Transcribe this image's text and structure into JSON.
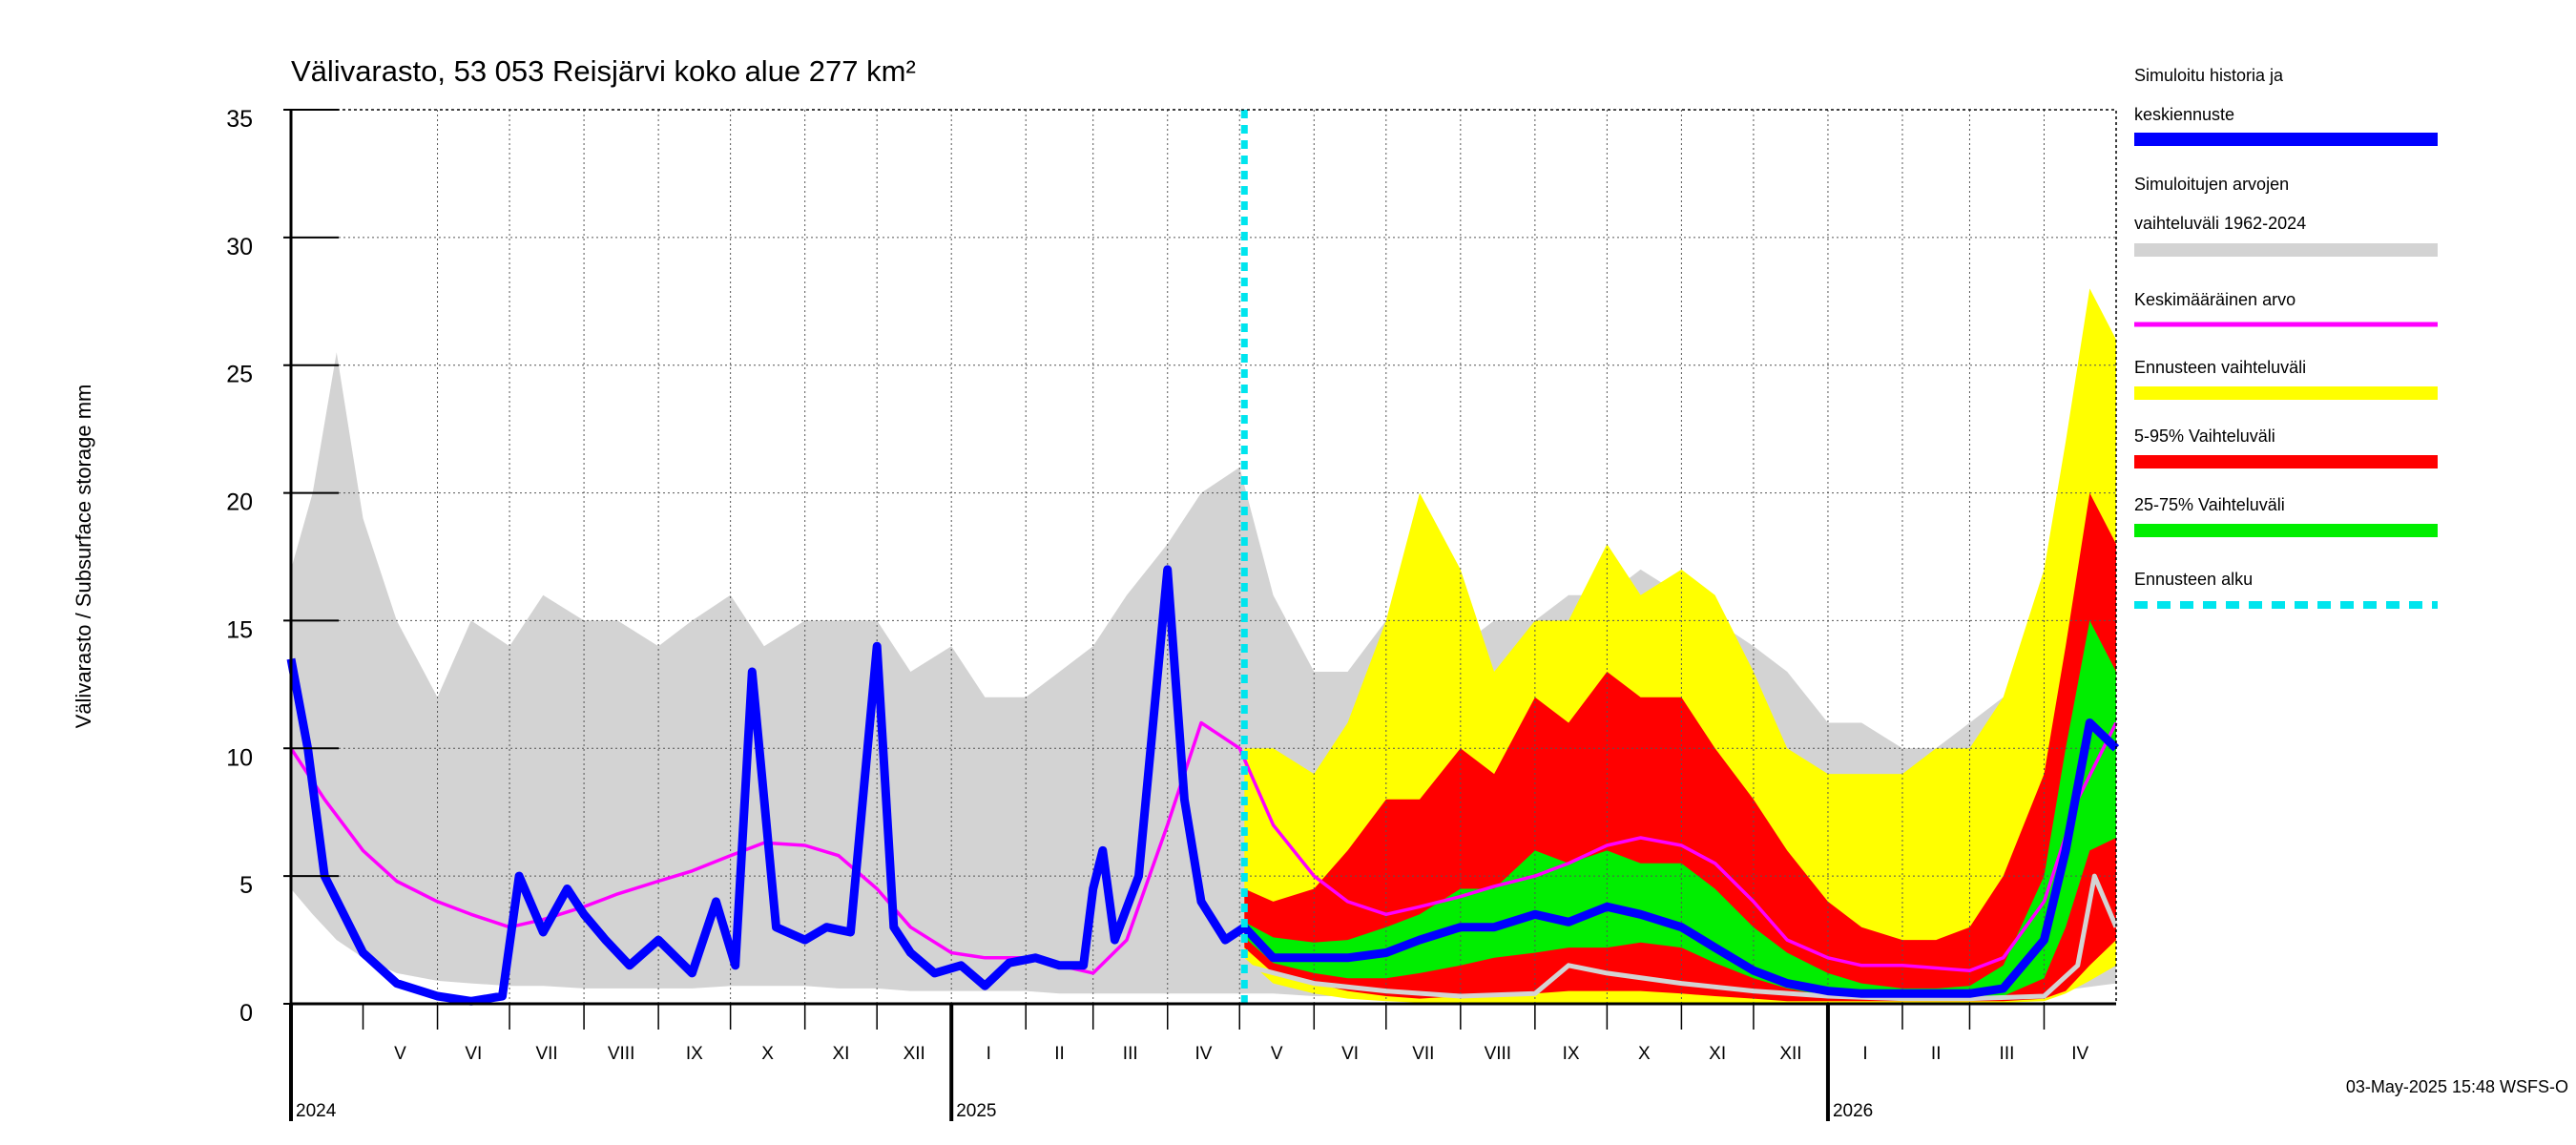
{
  "chart_data": {
    "type": "area",
    "title": "Välivarasto, 53 053 Reisjärvi koko alue 277 km²",
    "ylabel": "Välivarasto / Subsurface storage  mm",
    "ylim": [
      0,
      35
    ],
    "yticks": [
      "0",
      "5",
      "10",
      "15",
      "20",
      "25",
      "30",
      "35"
    ],
    "xlim": [
      "2024-04-01",
      "2026-05-01"
    ],
    "forecast_start": "2025-05-03",
    "grid": true,
    "legend_position": "right",
    "months": [
      {
        "label": "V",
        "start": "2024-05-01",
        "end": "2024-06-01"
      },
      {
        "label": "VI",
        "start": "2024-06-01",
        "end": "2024-07-01"
      },
      {
        "label": "VII",
        "start": "2024-07-01",
        "end": "2024-08-01"
      },
      {
        "label": "VIII",
        "start": "2024-08-01",
        "end": "2024-09-01"
      },
      {
        "label": "IX",
        "start": "2024-09-01",
        "end": "2024-10-01"
      },
      {
        "label": "X",
        "start": "2024-10-01",
        "end": "2024-11-01"
      },
      {
        "label": "XI",
        "start": "2024-11-01",
        "end": "2024-12-01"
      },
      {
        "label": "XII",
        "start": "2024-12-01",
        "end": "2025-01-01"
      },
      {
        "label": "I",
        "start": "2025-01-01",
        "end": "2025-02-01"
      },
      {
        "label": "II",
        "start": "2025-02-01",
        "end": "2025-03-01"
      },
      {
        "label": "III",
        "start": "2025-03-01",
        "end": "2025-04-01"
      },
      {
        "label": "IV",
        "start": "2025-04-01",
        "end": "2025-05-01"
      },
      {
        "label": "V",
        "start": "2025-05-01",
        "end": "2025-06-01"
      },
      {
        "label": "VI",
        "start": "2025-06-01",
        "end": "2025-07-01"
      },
      {
        "label": "VII",
        "start": "2025-07-01",
        "end": "2025-08-01"
      },
      {
        "label": "VIII",
        "start": "2025-08-01",
        "end": "2025-09-01"
      },
      {
        "label": "IX",
        "start": "2025-09-01",
        "end": "2025-10-01"
      },
      {
        "label": "X",
        "start": "2025-10-01",
        "end": "2025-11-01"
      },
      {
        "label": "XI",
        "start": "2025-11-01",
        "end": "2025-12-01"
      },
      {
        "label": "XII",
        "start": "2025-12-01",
        "end": "2026-01-01"
      },
      {
        "label": "I",
        "start": "2026-01-01",
        "end": "2026-02-01"
      },
      {
        "label": "II",
        "start": "2026-02-01",
        "end": "2026-03-01"
      },
      {
        "label": "III",
        "start": "2026-03-01",
        "end": "2026-04-01"
      },
      {
        "label": "IV",
        "start": "2026-04-01",
        "end": "2026-05-01"
      }
    ],
    "years": [
      {
        "label": "2024",
        "start": "2024-04-01"
      },
      {
        "label": "2025",
        "start": "2025-01-01"
      },
      {
        "label": "2026",
        "start": "2026-01-01"
      }
    ],
    "legend": [
      {
        "key": "history",
        "lines": [
          "Simuloitu historia ja",
          "keskiennuste"
        ],
        "color": "#0000ff"
      },
      {
        "key": "range",
        "lines": [
          "Simuloitujen arvojen",
          "vaihteluväli 1962-2024"
        ],
        "color": "#d3d3d3"
      },
      {
        "key": "mean",
        "lines": [
          "Keskimääräinen arvo"
        ],
        "color": "#ff00ff"
      },
      {
        "key": "fc_range",
        "lines": [
          "Ennusteen vaihteluväli"
        ],
        "color": "#ffff00"
      },
      {
        "key": "p5_95",
        "lines": [
          "5-95% Vaihteluväli"
        ],
        "color": "#ff0000"
      },
      {
        "key": "p25_75",
        "lines": [
          "25-75% Vaihteluväli"
        ],
        "color": "#00ee00"
      },
      {
        "key": "fc_start",
        "lines": [
          "Ennusteen alku"
        ],
        "color": "#00e5ee"
      }
    ],
    "series": {
      "hist_range": {
        "x": [
          "2024-04-01",
          "2024-04-10",
          "2024-04-20",
          "2024-05-01",
          "2024-05-15",
          "2024-06-01",
          "2024-06-15",
          "2024-07-01",
          "2024-07-15",
          "2024-08-01",
          "2024-08-15",
          "2024-09-01",
          "2024-09-15",
          "2024-10-01",
          "2024-10-15",
          "2024-11-01",
          "2024-11-15",
          "2024-12-01",
          "2024-12-15",
          "2025-01-01",
          "2025-01-15",
          "2025-02-01",
          "2025-02-15",
          "2025-03-01",
          "2025-03-15",
          "2025-04-01",
          "2025-04-15",
          "2025-05-01",
          "2025-05-15",
          "2025-06-01",
          "2025-06-15",
          "2025-07-01",
          "2025-07-15",
          "2025-08-01",
          "2025-08-15",
          "2025-09-01",
          "2025-09-15",
          "2025-10-01",
          "2025-10-15",
          "2025-11-01",
          "2025-11-15",
          "2025-12-01",
          "2025-12-15",
          "2026-01-01",
          "2026-01-15",
          "2026-02-01",
          "2026-02-15",
          "2026-03-01",
          "2026-03-15",
          "2026-04-01",
          "2026-04-15",
          "2026-05-01"
        ],
        "low": [
          4.5,
          3.5,
          2.5,
          1.8,
          1.2,
          0.9,
          0.8,
          0.7,
          0.7,
          0.6,
          0.6,
          0.6,
          0.6,
          0.7,
          0.7,
          0.7,
          0.6,
          0.6,
          0.5,
          0.5,
          0.5,
          0.5,
          0.4,
          0.4,
          0.4,
          0.4,
          0.4,
          0.4,
          0.4,
          0.3,
          0.3,
          0.3,
          0.3,
          0.3,
          0.3,
          0.3,
          0.3,
          0.3,
          0.3,
          0.3,
          0.3,
          0.3,
          0.3,
          0.3,
          0.3,
          0.3,
          0.3,
          0.3,
          0.3,
          0.4,
          0.6,
          0.8
        ],
        "high": [
          17,
          20,
          25.5,
          19,
          15,
          12,
          15,
          14,
          16,
          15,
          15,
          14,
          15,
          16,
          14,
          15,
          15,
          15,
          13,
          14,
          12,
          12,
          13,
          14,
          16,
          18,
          20,
          21,
          16,
          13,
          13,
          15,
          17,
          14,
          15,
          15,
          16,
          16,
          17,
          16,
          15,
          14,
          13,
          11,
          11,
          10,
          10,
          11,
          12,
          14,
          19,
          21
        ]
      },
      "fc_range": {
        "x": [
          "2025-05-03",
          "2025-05-15",
          "2025-06-01",
          "2025-06-15",
          "2025-07-01",
          "2025-07-15",
          "2025-08-01",
          "2025-08-15",
          "2025-09-01",
          "2025-09-15",
          "2025-10-01",
          "2025-10-15",
          "2025-11-01",
          "2025-11-15",
          "2025-12-01",
          "2025-12-15",
          "2026-01-01",
          "2026-01-15",
          "2026-02-01",
          "2026-02-15",
          "2026-03-01",
          "2026-03-15",
          "2026-04-01",
          "2026-04-10",
          "2026-04-20",
          "2026-05-01"
        ],
        "low": [
          1.8,
          0.8,
          0.4,
          0.2,
          0.1,
          0.05,
          0.05,
          0.05,
          0.05,
          0.05,
          0.05,
          0.05,
          0.05,
          0.05,
          0.05,
          0.05,
          0.05,
          0.05,
          0.05,
          0.05,
          0.05,
          0.05,
          0.1,
          0.4,
          0.9,
          1.5
        ],
        "high": [
          10,
          10,
          9,
          11,
          15,
          20,
          17,
          13,
          15,
          15,
          18,
          16,
          17,
          16,
          13,
          10,
          9,
          9,
          9,
          10,
          10,
          12,
          17,
          22,
          28,
          26
        ]
      },
      "p5_95": {
        "x": [
          "2025-05-03",
          "2025-05-15",
          "2025-06-01",
          "2025-06-15",
          "2025-07-01",
          "2025-07-15",
          "2025-08-01",
          "2025-08-15",
          "2025-09-01",
          "2025-09-15",
          "2025-10-01",
          "2025-10-15",
          "2025-11-01",
          "2025-11-15",
          "2025-12-01",
          "2025-12-15",
          "2026-01-01",
          "2026-01-15",
          "2026-02-01",
          "2026-02-15",
          "2026-03-01",
          "2026-03-15",
          "2026-04-01",
          "2026-04-10",
          "2026-04-20",
          "2026-05-01"
        ],
        "low": [
          2.2,
          1.2,
          0.8,
          0.5,
          0.3,
          0.2,
          0.3,
          0.4,
          0.4,
          0.5,
          0.5,
          0.5,
          0.4,
          0.3,
          0.2,
          0.1,
          0.1,
          0.1,
          0.1,
          0.1,
          0.1,
          0.1,
          0.2,
          0.5,
          1.5,
          2.5
        ],
        "high": [
          4.5,
          4,
          4.5,
          6,
          8,
          8,
          10,
          9,
          12,
          11,
          13,
          12,
          12,
          10,
          8,
          6,
          4,
          3,
          2.5,
          2.5,
          3,
          5,
          9,
          14,
          20,
          18
        ]
      },
      "p25_75": {
        "x": [
          "2025-05-03",
          "2025-05-15",
          "2025-06-01",
          "2025-06-15",
          "2025-07-01",
          "2025-07-15",
          "2025-08-01",
          "2025-08-15",
          "2025-09-01",
          "2025-09-15",
          "2025-10-01",
          "2025-10-15",
          "2025-11-01",
          "2025-11-15",
          "2025-12-01",
          "2025-12-15",
          "2026-01-01",
          "2026-01-15",
          "2026-02-01",
          "2026-02-15",
          "2026-03-01",
          "2026-03-15",
          "2026-04-01",
          "2026-04-10",
          "2026-04-20",
          "2026-05-01"
        ],
        "low": [
          2.6,
          1.6,
          1.2,
          1.0,
          1.0,
          1.2,
          1.5,
          1.8,
          2.0,
          2.2,
          2.2,
          2.4,
          2.2,
          1.6,
          1.0,
          0.6,
          0.3,
          0.2,
          0.2,
          0.2,
          0.2,
          0.3,
          1.0,
          3.0,
          6.0,
          6.5
        ],
        "high": [
          3.2,
          2.6,
          2.4,
          2.5,
          3,
          3.5,
          4.5,
          4.5,
          6,
          5.5,
          6,
          5.5,
          5.5,
          4.5,
          3,
          2,
          1.2,
          0.8,
          0.6,
          0.6,
          0.7,
          1.5,
          5,
          10,
          15,
          13
        ]
      },
      "mean": {
        "x": [
          "2024-04-01",
          "2024-04-15",
          "2024-05-01",
          "2024-05-15",
          "2024-06-01",
          "2024-06-15",
          "2024-07-01",
          "2024-07-15",
          "2024-08-01",
          "2024-08-15",
          "2024-09-01",
          "2024-09-15",
          "2024-10-01",
          "2024-10-15",
          "2024-11-01",
          "2024-11-15",
          "2024-12-01",
          "2024-12-15",
          "2025-01-01",
          "2025-01-15",
          "2025-02-01",
          "2025-02-15",
          "2025-03-01",
          "2025-03-15",
          "2025-04-01",
          "2025-04-15",
          "2025-05-01",
          "2025-05-15",
          "2025-06-01",
          "2025-06-15",
          "2025-07-01",
          "2025-07-15",
          "2025-08-01",
          "2025-08-15",
          "2025-09-01",
          "2025-09-15",
          "2025-10-01",
          "2025-10-15",
          "2025-11-01",
          "2025-11-15",
          "2025-12-01",
          "2025-12-15",
          "2026-01-01",
          "2026-01-15",
          "2026-02-01",
          "2026-02-15",
          "2026-03-01",
          "2026-03-15",
          "2026-04-01",
          "2026-04-15",
          "2026-05-01"
        ],
        "y": [
          10,
          8,
          6,
          4.8,
          4,
          3.5,
          3.0,
          3.3,
          3.8,
          4.3,
          4.8,
          5.2,
          5.8,
          6.3,
          6.2,
          5.8,
          4.5,
          3.0,
          2.0,
          1.8,
          1.8,
          1.5,
          1.2,
          2.5,
          7,
          11,
          10,
          7,
          5,
          4,
          3.5,
          3.8,
          4.2,
          4.6,
          5,
          5.5,
          6.2,
          6.5,
          6.2,
          5.5,
          4,
          2.5,
          1.8,
          1.5,
          1.5,
          1.4,
          1.3,
          1.8,
          4,
          8,
          11
        ]
      },
      "history": {
        "x": [
          "2024-04-01",
          "2024-04-08",
          "2024-04-15",
          "2024-05-01",
          "2024-05-15",
          "2024-06-01",
          "2024-06-15",
          "2024-06-28",
          "2024-07-05",
          "2024-07-15",
          "2024-07-25",
          "2024-08-01",
          "2024-08-10",
          "2024-08-20",
          "2024-09-01",
          "2024-09-15",
          "2024-09-25",
          "2024-10-03",
          "2024-10-10",
          "2024-10-20",
          "2024-11-01",
          "2024-11-10",
          "2024-11-20",
          "2024-12-01",
          "2024-12-08",
          "2024-12-15",
          "2024-12-25",
          "2025-01-05",
          "2025-01-15",
          "2025-01-25",
          "2025-02-05",
          "2025-02-15",
          "2025-02-25",
          "2025-03-01",
          "2025-03-05",
          "2025-03-10",
          "2025-03-20",
          "2025-04-01",
          "2025-04-08",
          "2025-04-15",
          "2025-04-25",
          "2025-05-03",
          "2025-05-15",
          "2025-06-01",
          "2025-06-15",
          "2025-07-01",
          "2025-07-15",
          "2025-08-01",
          "2025-08-15",
          "2025-09-01",
          "2025-09-15",
          "2025-10-01",
          "2025-10-15",
          "2025-11-01",
          "2025-11-15",
          "2025-12-01",
          "2025-12-15",
          "2026-01-01",
          "2026-01-15",
          "2026-02-01",
          "2026-02-15",
          "2026-03-01",
          "2026-03-15",
          "2026-04-01",
          "2026-04-10",
          "2026-04-20",
          "2026-05-01"
        ],
        "y": [
          13.5,
          10,
          5,
          2.0,
          0.8,
          0.3,
          0.1,
          0.3,
          5,
          2.8,
          4.5,
          3.5,
          2.5,
          1.5,
          2.5,
          1.2,
          4,
          1.5,
          13,
          3,
          2.5,
          3,
          2.8,
          14,
          3,
          2,
          1.2,
          1.5,
          0.7,
          1.6,
          1.8,
          1.5,
          1.5,
          4.5,
          6,
          2.5,
          5,
          17,
          8,
          4,
          2.5,
          3,
          1.8,
          1.8,
          1.8,
          2,
          2.5,
          3,
          3,
          3.5,
          3.2,
          3.8,
          3.5,
          3,
          2.2,
          1.3,
          0.8,
          0.5,
          0.4,
          0.4,
          0.4,
          0.4,
          0.6,
          2.5,
          6,
          11,
          10
        ]
      },
      "hist_low_line": {
        "x": [
          "2025-05-03",
          "2025-06-01",
          "2025-07-01",
          "2025-08-01",
          "2025-09-01",
          "2025-09-15",
          "2025-10-01",
          "2025-11-01",
          "2025-12-01",
          "2026-01-01",
          "2026-02-01",
          "2026-03-01",
          "2026-04-01",
          "2026-04-15",
          "2026-04-22",
          "2026-05-01"
        ],
        "y": [
          1.5,
          0.8,
          0.5,
          0.3,
          0.4,
          1.5,
          1.2,
          0.8,
          0.5,
          0.3,
          0.2,
          0.2,
          0.3,
          1.5,
          5,
          3
        ]
      }
    }
  },
  "footer": {
    "timestamp": "03-May-2025 15:48 WSFS-O"
  }
}
